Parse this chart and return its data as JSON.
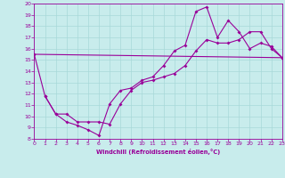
{
  "xlabel": "Windchill (Refroidissement éolien,°C)",
  "bg_color": "#c8ecec",
  "grid_color": "#a8d8d8",
  "line_color": "#990099",
  "xlim": [
    0,
    23
  ],
  "ylim": [
    8,
    20
  ],
  "xticks": [
    0,
    1,
    2,
    3,
    4,
    5,
    6,
    7,
    8,
    9,
    10,
    11,
    12,
    13,
    14,
    15,
    16,
    17,
    18,
    19,
    20,
    21,
    22,
    23
  ],
  "yticks": [
    8,
    9,
    10,
    11,
    12,
    13,
    14,
    15,
    16,
    17,
    18,
    19,
    20
  ],
  "series1": [
    [
      0,
      15.5
    ],
    [
      1,
      11.8
    ],
    [
      2,
      10.2
    ],
    [
      3,
      9.5
    ],
    [
      4,
      9.2
    ],
    [
      5,
      8.8
    ],
    [
      6,
      8.3
    ],
    [
      7,
      11.1
    ],
    [
      8,
      12.3
    ],
    [
      9,
      12.5
    ],
    [
      10,
      13.2
    ],
    [
      11,
      13.5
    ],
    [
      12,
      14.5
    ],
    [
      13,
      15.8
    ],
    [
      14,
      16.3
    ],
    [
      15,
      19.3
    ],
    [
      16,
      19.7
    ],
    [
      17,
      17.0
    ],
    [
      18,
      18.5
    ],
    [
      19,
      17.5
    ],
    [
      20,
      16.0
    ],
    [
      21,
      16.5
    ],
    [
      22,
      16.2
    ],
    [
      23,
      15.2
    ]
  ],
  "series2": [
    [
      1,
      11.8
    ],
    [
      2,
      10.2
    ],
    [
      3,
      10.2
    ],
    [
      4,
      9.5
    ],
    [
      5,
      9.5
    ],
    [
      6,
      9.5
    ],
    [
      7,
      9.3
    ],
    [
      8,
      11.1
    ],
    [
      9,
      12.3
    ],
    [
      10,
      13.0
    ],
    [
      11,
      13.2
    ],
    [
      12,
      13.5
    ],
    [
      13,
      13.8
    ],
    [
      14,
      14.5
    ],
    [
      15,
      15.8
    ],
    [
      16,
      16.8
    ],
    [
      17,
      16.5
    ],
    [
      18,
      16.5
    ],
    [
      19,
      16.8
    ],
    [
      20,
      17.5
    ],
    [
      21,
      17.5
    ],
    [
      22,
      16.0
    ],
    [
      23,
      15.2
    ]
  ],
  "series3": [
    [
      0,
      15.5
    ],
    [
      23,
      15.2
    ]
  ]
}
